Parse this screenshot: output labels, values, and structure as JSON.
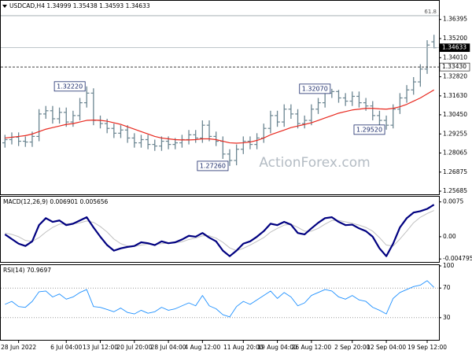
{
  "chart_data": [
    {
      "type": "ohlc",
      "title": "USDCAD,H4",
      "watermark": "ActionForex.com",
      "color": "#6b8591",
      "categories": [
        null,
        null,
        "28 Jun 2022",
        null,
        null,
        null,
        null,
        null,
        null,
        "6 Jul 04:00",
        null,
        null,
        null,
        null,
        "13 Jul 12:00",
        null,
        null,
        null,
        null,
        "20 Jul 20:00",
        null,
        null,
        null,
        null,
        "28 Jul 04:00",
        null,
        null,
        null,
        null,
        "4 Aug 12:00",
        null,
        null,
        null,
        null,
        null,
        "11 Aug 20:00",
        null,
        null,
        null,
        null,
        "19 Aug 04:00",
        null,
        null,
        null,
        null,
        "26 Aug 12:00",
        null,
        null,
        null,
        null,
        null,
        "2 Sep 20:00",
        null,
        null,
        null,
        null,
        "12 Sep 04:00",
        null,
        null,
        null,
        null,
        null,
        "19 Sep 12:00",
        null
      ],
      "open": [
        1.287,
        1.289,
        1.2905,
        1.288,
        1.2875,
        1.291,
        1.305,
        1.307,
        1.302,
        1.306,
        1.3,
        1.304,
        1.312,
        1.318,
        1.301,
        1.299,
        1.296,
        1.293,
        1.295,
        1.29,
        1.287,
        1.289,
        1.286,
        1.285,
        1.288,
        1.286,
        1.287,
        1.289,
        1.292,
        1.29,
        1.298,
        1.291,
        1.288,
        1.28,
        1.276,
        1.283,
        1.288,
        1.286,
        1.29,
        1.296,
        1.304,
        1.3,
        1.308,
        1.305,
        1.299,
        1.301,
        1.308,
        1.312,
        1.318,
        1.319,
        1.315,
        1.313,
        1.316,
        1.312,
        1.31,
        1.304,
        1.301,
        1.298,
        1.308,
        1.315,
        1.32,
        1.325,
        1.333,
        1.34999
      ],
      "high": [
        1.292,
        1.2935,
        1.2935,
        1.291,
        1.294,
        1.308,
        1.31,
        1.31,
        1.309,
        1.309,
        1.307,
        1.315,
        1.3222,
        1.321,
        1.304,
        1.302,
        1.299,
        1.298,
        1.298,
        1.293,
        1.292,
        1.292,
        1.289,
        1.291,
        1.291,
        1.29,
        1.292,
        1.295,
        1.295,
        1.301,
        1.301,
        1.294,
        1.291,
        1.283,
        1.286,
        1.291,
        1.291,
        1.293,
        1.299,
        1.307,
        1.307,
        1.311,
        1.311,
        1.308,
        1.304,
        1.311,
        1.315,
        1.32,
        1.3207,
        1.32,
        1.318,
        1.319,
        1.319,
        1.315,
        1.313,
        1.307,
        1.304,
        1.311,
        1.318,
        1.323,
        1.328,
        1.336,
        1.351,
        1.35438
      ],
      "low": [
        1.284,
        1.286,
        1.285,
        1.2845,
        1.2845,
        1.288,
        1.302,
        1.299,
        1.299,
        1.297,
        1.297,
        1.301,
        1.309,
        1.298,
        1.296,
        1.293,
        1.29,
        1.29,
        1.287,
        1.284,
        1.284,
        1.283,
        1.282,
        1.282,
        1.283,
        1.283,
        1.284,
        1.286,
        1.287,
        1.287,
        1.288,
        1.285,
        1.277,
        1.2726,
        1.273,
        1.28,
        1.283,
        1.283,
        1.287,
        1.293,
        1.297,
        1.297,
        1.302,
        1.296,
        1.296,
        1.298,
        1.305,
        1.309,
        1.315,
        1.312,
        1.31,
        1.31,
        1.309,
        1.307,
        1.301,
        1.298,
        1.2952,
        1.296,
        1.305,
        1.312,
        1.317,
        1.322,
        1.33,
        1.34593
      ],
      "close": [
        1.289,
        1.2905,
        1.288,
        1.2875,
        1.291,
        1.305,
        1.307,
        1.302,
        1.306,
        1.3,
        1.304,
        1.312,
        1.318,
        1.301,
        1.299,
        1.296,
        1.293,
        1.295,
        1.29,
        1.287,
        1.289,
        1.286,
        1.285,
        1.288,
        1.286,
        1.287,
        1.289,
        1.292,
        1.29,
        1.298,
        1.291,
        1.288,
        1.28,
        1.276,
        1.283,
        1.288,
        1.286,
        1.29,
        1.296,
        1.304,
        1.3,
        1.308,
        1.305,
        1.299,
        1.301,
        1.308,
        1.312,
        1.318,
        1.319,
        1.315,
        1.313,
        1.316,
        1.312,
        1.31,
        1.304,
        1.301,
        1.298,
        1.308,
        1.315,
        1.32,
        1.325,
        1.333,
        1.348,
        1.34633
      ],
      "overlays": [
        {
          "color": "#e8281e",
          "values": [
            1.29,
            1.2905,
            1.291,
            1.2915,
            1.2925,
            1.294,
            1.2955,
            1.2965,
            1.2975,
            1.2985,
            1.299,
            1.3,
            1.301,
            1.3012,
            1.301,
            1.3005,
            1.2995,
            1.2985,
            1.297,
            1.2955,
            1.294,
            1.2925,
            1.291,
            1.29,
            1.2895,
            1.289,
            1.2888,
            1.2888,
            1.289,
            1.2895,
            1.2895,
            1.289,
            1.288,
            1.287,
            1.2868,
            1.287,
            1.2875,
            1.2885,
            1.29,
            1.292,
            1.2935,
            1.295,
            1.2965,
            1.2975,
            1.2985,
            1.2995,
            1.301,
            1.3025,
            1.304,
            1.3055,
            1.3065,
            1.3075,
            1.308,
            1.3085,
            1.3085,
            1.3082,
            1.308,
            1.3085,
            1.3095,
            1.311,
            1.313,
            1.315,
            1.3175,
            1.32
          ]
        }
      ],
      "annotations": [
        "1.32220",
        "1.27260",
        "1.32070",
        "1.29520"
      ],
      "fib_level": {
        "label": "61.8",
        "price": 1.3663
      },
      "price_lines": [
        {
          "value": 1.34633,
          "style": "solid"
        },
        {
          "value": 1.3343,
          "label": "1.33430",
          "style": "dashed"
        }
      ],
      "ylim": [
        1.2549,
        1.3746
      ],
      "yticks": [
        1.36395,
        {
          "value": 1.352,
          "label": "1.35200"
        },
        {
          "value": 1.3401,
          "label": "1.34010"
        },
        {
          "value": 1.3282,
          "label": "1.32820"
        },
        {
          "value": 1.3163,
          "label": "1.31630"
        },
        {
          "value": 1.3045,
          "label": "1.30450"
        },
        1.29255,
        1.28065,
        1.26875,
        1.25685
      ]
    },
    {
      "type": "line",
      "title": "MACD(12,26,9)",
      "grid": false,
      "series": [
        {
          "color": "#000080",
          "values": [
            0.0005,
            -0.0005,
            -0.0015,
            -0.002,
            -0.001,
            0.0025,
            0.004,
            0.0032,
            0.0035,
            0.0025,
            0.0028,
            0.0035,
            0.0042,
            0.002,
            0.0,
            -0.0018,
            -0.003,
            -0.0025,
            -0.0022,
            -0.002,
            -0.0012,
            -0.0014,
            -0.0018,
            -0.001,
            -0.0014,
            -0.0012,
            -0.0006,
            0.0002,
            0.0,
            0.0008,
            -0.0002,
            -0.001,
            -0.003,
            -0.0042,
            -0.003,
            -0.0015,
            -0.001,
            0.0,
            0.0012,
            0.0028,
            0.0025,
            0.0032,
            0.0026,
            0.0008,
            0.0005,
            0.0018,
            0.003,
            0.004,
            0.0042,
            0.0032,
            0.0025,
            0.0026,
            0.0018,
            0.0012,
            0.0,
            -0.0025,
            -0.0042,
            -0.0015,
            0.002,
            0.004,
            0.0052,
            0.0055,
            0.006,
            0.006901
          ]
        },
        {
          "color": "#c0c0c0",
          "values": [
            0.0008,
            0.0005,
            0.0,
            -0.0008,
            -0.001,
            -0.0002,
            0.001,
            0.002,
            0.0027,
            0.0028,
            0.0028,
            0.003,
            0.0034,
            0.0031,
            0.0022,
            0.001,
            -0.0005,
            -0.0015,
            -0.002,
            -0.0021,
            -0.0018,
            -0.0016,
            -0.0017,
            -0.0015,
            -0.0014,
            -0.0013,
            -0.0011,
            -0.0006,
            -0.0003,
            0.0002,
            0.0002,
            -0.0003,
            -0.0012,
            -0.0024,
            -0.003,
            -0.0025,
            -0.0018,
            -0.001,
            -0.0002,
            0.001,
            0.0018,
            0.0025,
            0.0027,
            0.002,
            0.0012,
            0.0012,
            0.0018,
            0.0027,
            0.0035,
            0.0035,
            0.0032,
            0.0029,
            0.0025,
            0.002,
            0.0012,
            -0.0002,
            -0.0018,
            -0.002,
            -0.0005,
            0.0012,
            0.003,
            0.0042,
            0.005,
            0.005656
          ]
        }
      ],
      "ylim": [
        -0.00544,
        0.00846
      ],
      "yticks": [
        0.0075,
        {
          "value": 0,
          "label": "0.00"
        },
        -0.004795
      ]
    },
    {
      "type": "line",
      "title": "RSI(14)",
      "grid": true,
      "color": "#1e90ff",
      "values": [
        48,
        52,
        45,
        44,
        52,
        65,
        66,
        58,
        62,
        55,
        58,
        64,
        68,
        45,
        44,
        41,
        38,
        43,
        37,
        35,
        40,
        36,
        38,
        44,
        40,
        42,
        46,
        50,
        46,
        60,
        46,
        42,
        34,
        31,
        45,
        52,
        48,
        54,
        60,
        66,
        56,
        64,
        58,
        46,
        50,
        60,
        64,
        68,
        66,
        58,
        55,
        60,
        54,
        52,
        44,
        40,
        35,
        56,
        64,
        68,
        72,
        74,
        80,
        70.9697
      ],
      "ylim": [
        0,
        100
      ],
      "yticks": [
        100,
        70,
        30
      ]
    }
  ]
}
